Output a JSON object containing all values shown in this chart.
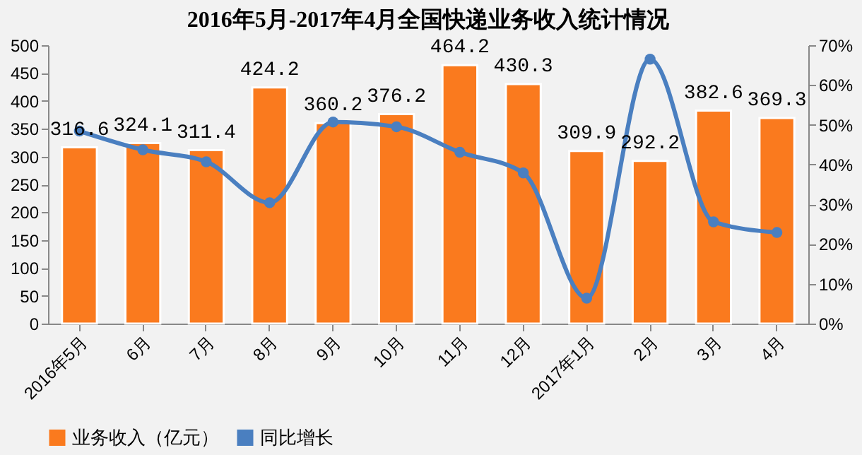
{
  "chart_data": {
    "type": "bar",
    "title": "2016年5月-2017年4月全国快递业务收入统计情况",
    "categories": [
      "2016年5月",
      "6月",
      "7月",
      "8月",
      "9月",
      "10月",
      "11月",
      "12月",
      "2017年1月",
      "2月",
      "3月",
      "4月"
    ],
    "series": [
      {
        "name": "业务收入（亿元）",
        "color": "#fa7a1e",
        "values": [
          316.6,
          324.1,
          311.4,
          424.2,
          360.2,
          376.2,
          464.2,
          430.3,
          309.9,
          292.2,
          382.6,
          369.3
        ],
        "value_labels": [
          "316.6",
          "324.1",
          "311.4",
          "424.2",
          "360.2",
          "376.2",
          "464.2",
          "430.3",
          "309.9",
          "292.2",
          "382.6",
          "369.3"
        ]
      },
      {
        "name": "同比增长",
        "type": "line",
        "axis": "y2",
        "color": "#4a7fc0",
        "values": [
          48.4,
          43.7,
          40.7,
          30.4,
          50.7,
          49.5,
          43.1,
          37.9,
          6.4,
          66.5,
          25.6,
          22.9
        ]
      }
    ],
    "ylim": [
      0,
      500
    ],
    "yticks": [
      0,
      50,
      100,
      150,
      200,
      250,
      300,
      350,
      400,
      450,
      500
    ],
    "y2lim": [
      0,
      70
    ],
    "y2ticks": [
      {
        "value": 0,
        "label": "0%"
      },
      {
        "value": 10,
        "label": "10%"
      },
      {
        "value": 20,
        "label": "20%"
      },
      {
        "value": 30,
        "label": "30%"
      },
      {
        "value": 40,
        "label": "40%"
      },
      {
        "value": 50,
        "label": "50%"
      },
      {
        "value": 60,
        "label": "60%"
      },
      {
        "value": 70,
        "label": "70%"
      }
    ],
    "marker": "circle",
    "grid": false,
    "legend": "bottom"
  }
}
